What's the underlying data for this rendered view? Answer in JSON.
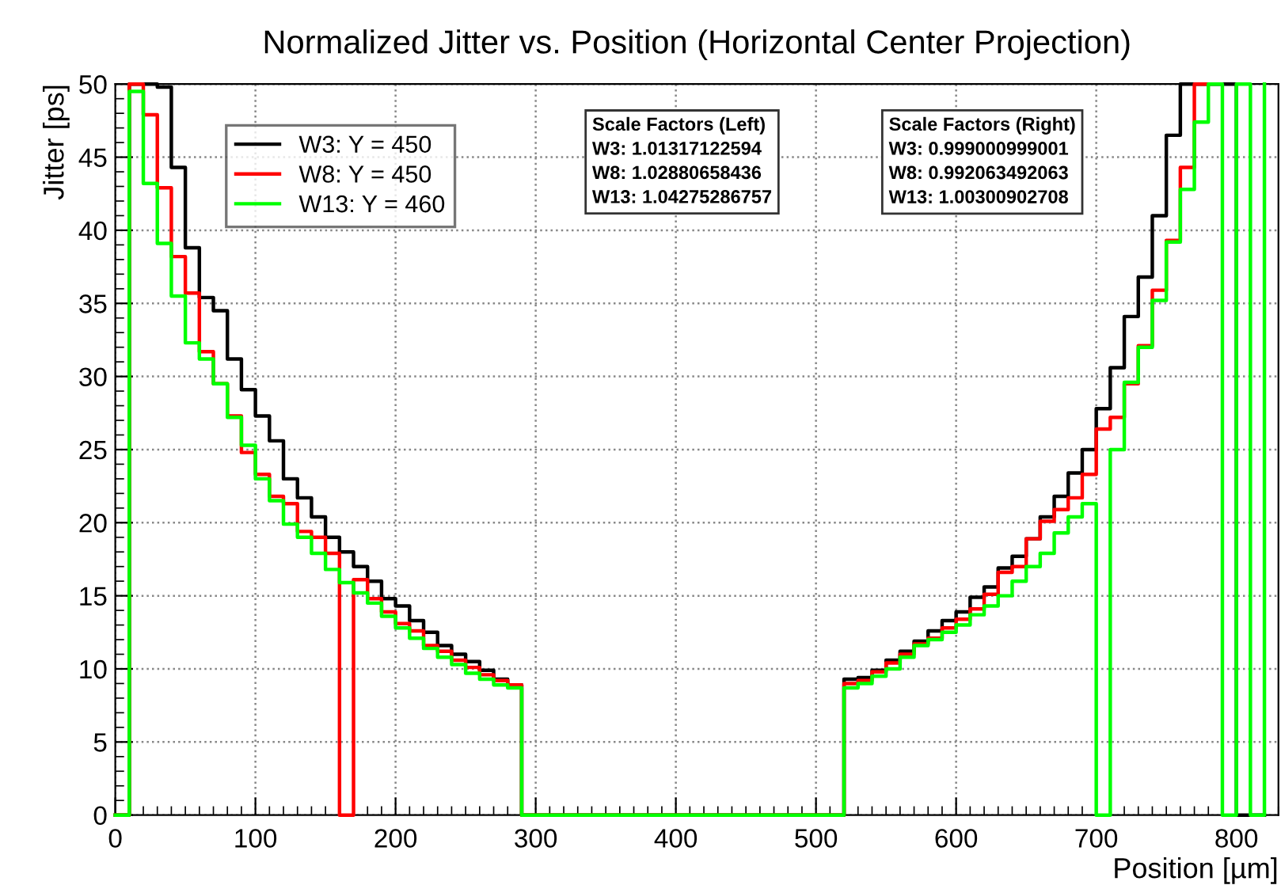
{
  "chart_data": {
    "type": "step",
    "title": "Normalized Jitter vs. Position (Horizontal Center Projection)",
    "xlabel": "Position [µm]",
    "ylabel": "Jitter [ps]",
    "x": [
      0,
      10,
      20,
      30,
      40,
      50,
      60,
      70,
      80,
      90,
      100,
      110,
      120,
      130,
      140,
      150,
      160,
      170,
      180,
      190,
      200,
      210,
      220,
      230,
      240,
      250,
      260,
      270,
      280,
      290,
      300,
      310,
      320,
      330,
      340,
      350,
      360,
      370,
      380,
      390,
      400,
      410,
      420,
      430,
      440,
      450,
      460,
      470,
      480,
      490,
      500,
      510,
      520,
      530,
      540,
      550,
      560,
      570,
      580,
      590,
      600,
      610,
      620,
      630,
      640,
      650,
      660,
      670,
      680,
      690,
      700,
      710,
      720,
      730,
      740,
      750,
      760,
      770,
      780,
      790,
      800,
      810,
      820
    ],
    "series": [
      {
        "name": "W3: Y = 450",
        "color": "#000000",
        "values": [
          0,
          50,
          50,
          49.8,
          44.3,
          38.8,
          35.4,
          34.5,
          31.2,
          29.1,
          27.3,
          25.6,
          23.0,
          21.7,
          20.4,
          19.0,
          18.0,
          17.0,
          16.0,
          14.8,
          14.3,
          13.3,
          12.5,
          11.6,
          11.0,
          10.5,
          9.9,
          9.3,
          8.9,
          0,
          0,
          0,
          0,
          0,
          0,
          0,
          0,
          0,
          0,
          0,
          0,
          0,
          0,
          0,
          0,
          0,
          0,
          0,
          0,
          0,
          0,
          0,
          9.3,
          9.4,
          9.9,
          10.6,
          11.2,
          11.9,
          12.6,
          13.3,
          13.9,
          14.9,
          15.6,
          16.9,
          17.7,
          18.9,
          20.4,
          21.8,
          23.4,
          25.0,
          27.8,
          30.6,
          34.1,
          36.8,
          41.0,
          46.5,
          50,
          50,
          50,
          50,
          0,
          0,
          0
        ]
      },
      {
        "name": "W8: Y = 450",
        "color": "#ff0000",
        "values": [
          0,
          50,
          47.9,
          42.9,
          38.2,
          35.7,
          31.7,
          29.5,
          27.3,
          24.8,
          23.3,
          21.8,
          21.3,
          19.4,
          19.0,
          17.9,
          0,
          16.1,
          14.8,
          13.9,
          13.1,
          12.6,
          11.6,
          11.2,
          10.6,
          10.1,
          9.6,
          9.2,
          8.9,
          0,
          0,
          0,
          0,
          0,
          0,
          0,
          0,
          0,
          0,
          0,
          0,
          0,
          0,
          0,
          0,
          0,
          0,
          0,
          0,
          0,
          0,
          0,
          9.0,
          9.2,
          9.8,
          10.4,
          11.0,
          11.7,
          12.1,
          12.8,
          13.4,
          14.1,
          15.1,
          16.6,
          17.0,
          18.9,
          20.1,
          20.9,
          21.7,
          23.3,
          26.4,
          27.2,
          29.5,
          32.1,
          35.9,
          39.3,
          44.3,
          50,
          50,
          null,
          null,
          null,
          null
        ]
      },
      {
        "name": "W13: Y = 460",
        "color": "#00ff00",
        "values": [
          0,
          49.5,
          43.2,
          39.1,
          35.5,
          32.3,
          31.2,
          29.5,
          27.2,
          25.3,
          23.0,
          21.5,
          19.9,
          19.0,
          17.9,
          16.8,
          15.9,
          15.2,
          14.5,
          13.6,
          12.8,
          12.1,
          11.4,
          10.8,
          10.3,
          9.7,
          9.3,
          8.9,
          8.7,
          0,
          0,
          0,
          0,
          0,
          0,
          0,
          0,
          0,
          0,
          0,
          0,
          0,
          0,
          0,
          0,
          0,
          0,
          0,
          0,
          0,
          0,
          0,
          8.7,
          9.0,
          9.5,
          10.0,
          10.8,
          11.6,
          12.0,
          12.5,
          13.0,
          13.7,
          14.3,
          15.0,
          16.0,
          17.0,
          17.9,
          19.3,
          20.4,
          21.3,
          0,
          25.0,
          29.6,
          32.0,
          35.2,
          39.2,
          42.8,
          47.4,
          50,
          0,
          50,
          0,
          50
        ]
      }
    ],
    "xlim": [
      0,
      830
    ],
    "ylim": [
      0,
      50
    ],
    "xticks": [
      0,
      100,
      200,
      300,
      400,
      500,
      600,
      700,
      800
    ],
    "yticks": [
      0,
      5,
      10,
      15,
      20,
      25,
      30,
      35,
      40,
      45,
      50
    ],
    "grid": true,
    "legend": "top left",
    "annotations": [
      "Scale Factors (Left)\nW3: 1.01317122594\nW8: 1.02880658436\nW13: 1.04275286757",
      "Scale Factors (Right)\nW3: 0.999000999001\nW8: 0.992063492063\nW13: 1.00300902708"
    ]
  }
}
